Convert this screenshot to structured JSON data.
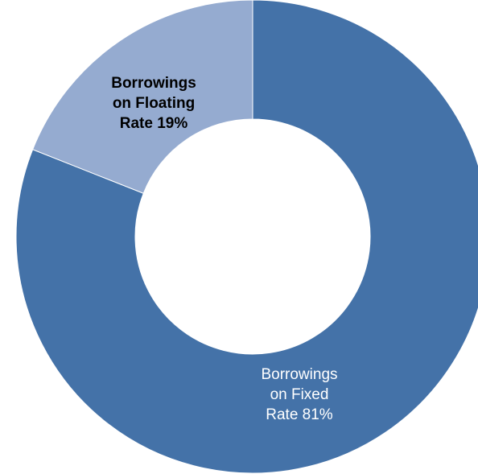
{
  "chart_data": {
    "type": "pie",
    "title": "",
    "donut": true,
    "start_angle_deg": 0,
    "direction": "clockwise",
    "slices": [
      {
        "name": "Borrowings on Fixed Rate",
        "value": 81,
        "color": "#4472a8",
        "label_lines": [
          "Borrowings",
          "on Fixed",
          "Rate 81%"
        ]
      },
      {
        "name": "Borrowings on Floating Rate",
        "value": 19,
        "color": "#95abd0",
        "label_lines": [
          "Borrowings",
          "on Floating",
          "Rate 19%"
        ]
      }
    ],
    "legend": "none",
    "grid": false
  }
}
